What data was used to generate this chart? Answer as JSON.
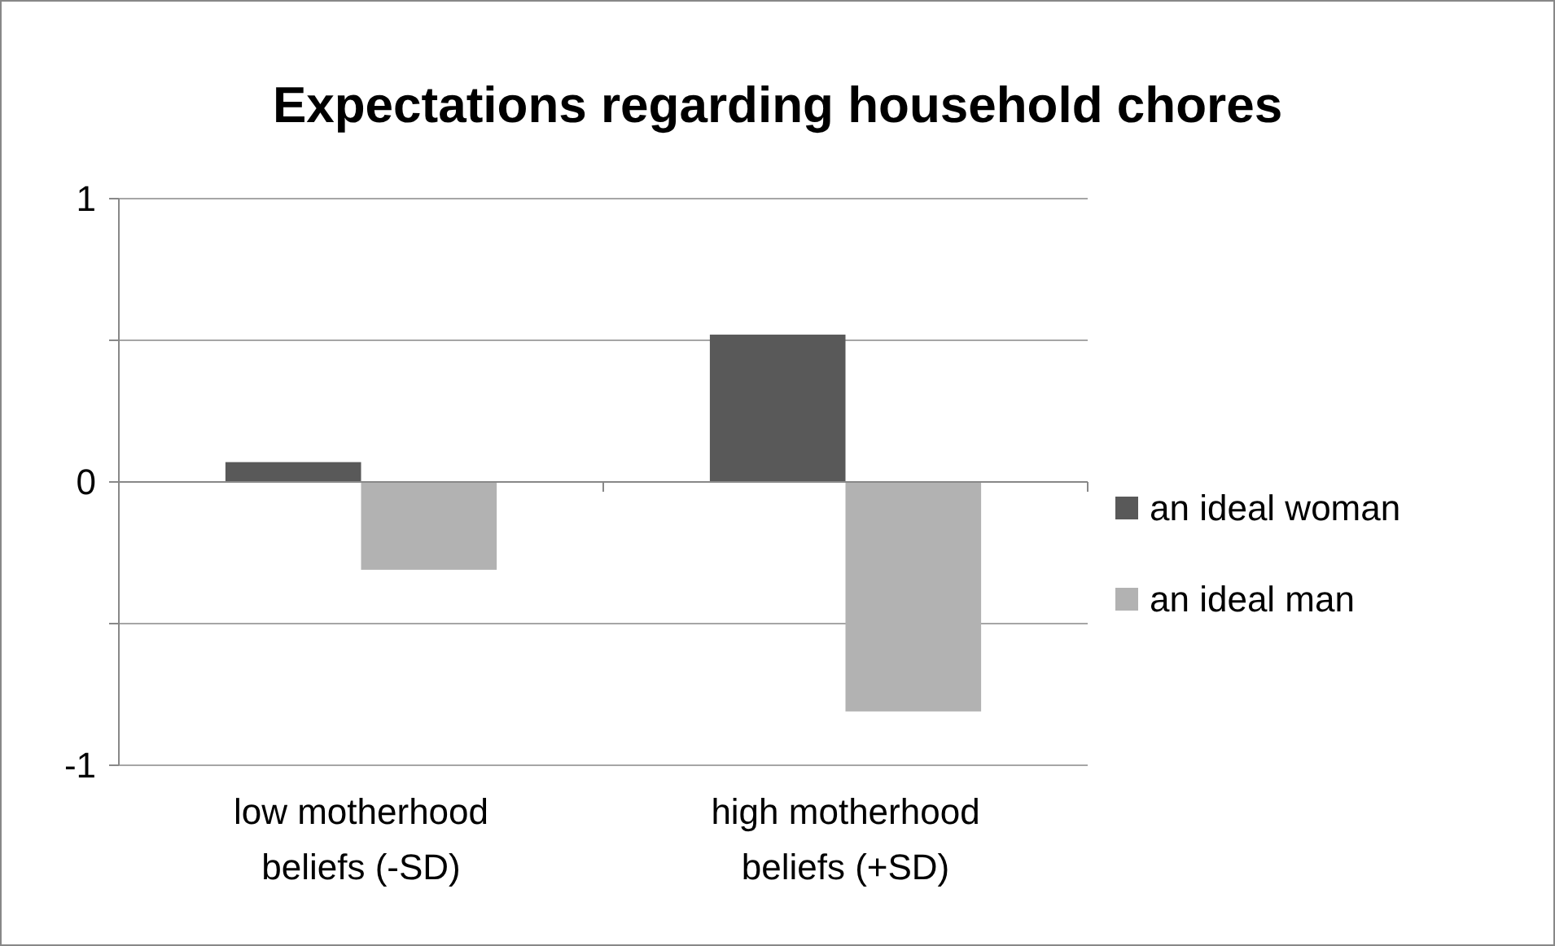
{
  "chart_data": {
    "type": "bar",
    "title": "Expectations regarding household chores",
    "categories": [
      "low motherhood beliefs (-SD)",
      "high motherhood beliefs (+SD)"
    ],
    "series": [
      {
        "name": "an ideal woman",
        "color": "#595959",
        "values": [
          0.07,
          0.52
        ]
      },
      {
        "name": "an ideal man",
        "color": "#b2b2b2",
        "values": [
          -0.31,
          -0.81
        ]
      }
    ],
    "ylim": [
      -1,
      1
    ],
    "yticks": [
      -1,
      {
        "value": -0.5,
        "label": null
      },
      0,
      {
        "value": 0.5,
        "label": null
      },
      1
    ],
    "grid": "y",
    "legend": "right"
  }
}
